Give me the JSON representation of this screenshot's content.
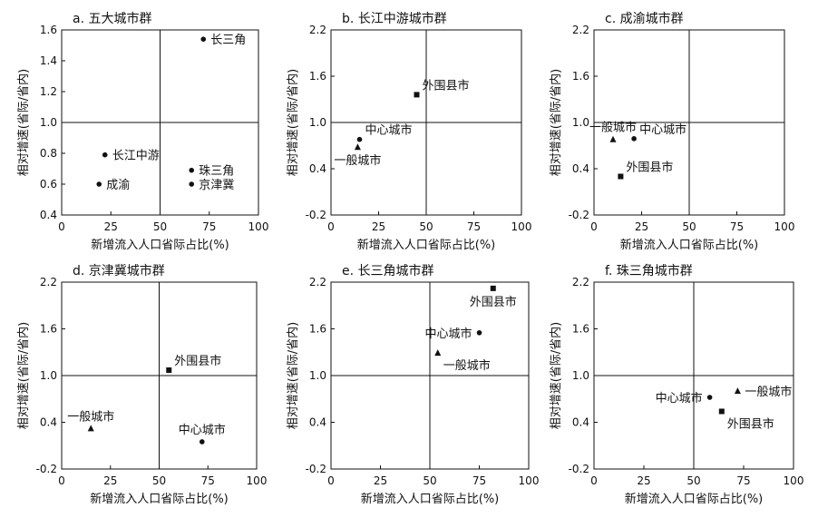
{
  "chart_data": [
    {
      "type": "scatter",
      "title": "a. 五大城市群",
      "xlabel": "新增流入人口省际占比(%)",
      "ylabel": "相对增速(省际/省内)",
      "xlim": [
        0,
        100
      ],
      "ylim": [
        0.4,
        1.6
      ],
      "xticks": [
        "0",
        "25",
        "50",
        "75",
        "100"
      ],
      "yticks": [
        "0.4",
        "0.6",
        "0.8",
        "1.0",
        "1.2",
        "1.4",
        "1.6"
      ],
      "ref_x": 50,
      "ref_y": 1.0,
      "points": [
        {
          "label": "长三角",
          "x": 72,
          "y": 1.54,
          "marker": "circle",
          "label_pos": "right"
        },
        {
          "label": "长江中游",
          "x": 22,
          "y": 0.79,
          "marker": "circle",
          "label_pos": "right"
        },
        {
          "label": "珠三角",
          "x": 66,
          "y": 0.69,
          "marker": "circle",
          "label_pos": "right"
        },
        {
          "label": "成渝",
          "x": 19,
          "y": 0.6,
          "marker": "circle",
          "label_pos": "right"
        },
        {
          "label": "京津冀",
          "x": 66,
          "y": 0.6,
          "marker": "circle",
          "label_pos": "right"
        }
      ]
    },
    {
      "type": "scatter",
      "title": "b. 长江中游城市群",
      "xlabel": "新增流入人口省际占比(%)",
      "ylabel": "相对增速(省际/省内)",
      "xlim": [
        0,
        100
      ],
      "ylim": [
        -0.2,
        2.2
      ],
      "xticks": [
        "0",
        "25",
        "50",
        "75",
        "100"
      ],
      "yticks": [
        "-0.2",
        "0.4",
        "1.0",
        "1.6",
        "2.2"
      ],
      "ref_x": 50,
      "ref_y": 1.0,
      "points": [
        {
          "label": "外围县市",
          "x": 45,
          "y": 1.36,
          "marker": "square",
          "label_pos": "above-right"
        },
        {
          "label": "中心城市",
          "x": 15,
          "y": 0.78,
          "marker": "circle",
          "label_pos": "above-right"
        },
        {
          "label": "一般城市",
          "x": 14,
          "y": 0.68,
          "marker": "triangle",
          "label_pos": "below"
        }
      ]
    },
    {
      "type": "scatter",
      "title": "c. 成渝城市群",
      "xlabel": "新增流入人口省际占比(%)",
      "ylabel": "相对增速(省际/省内)",
      "xlim": [
        0,
        100
      ],
      "ylim": [
        -0.2,
        2.2
      ],
      "xticks": [
        "0",
        "25",
        "50",
        "75",
        "100"
      ],
      "yticks": [
        "-0.2",
        "0.4",
        "1.0",
        "1.6",
        "2.2"
      ],
      "ref_x": 50,
      "ref_y": 1.0,
      "points": [
        {
          "label": "一般城市",
          "x": 10,
          "y": 0.78,
          "marker": "triangle",
          "label_pos": "above"
        },
        {
          "label": "中心城市",
          "x": 21,
          "y": 0.79,
          "marker": "circle",
          "label_pos": "above-right"
        },
        {
          "label": "外围县市",
          "x": 14,
          "y": 0.3,
          "marker": "square",
          "label_pos": "above-right"
        }
      ]
    },
    {
      "type": "scatter",
      "title": "d. 京津冀城市群",
      "xlabel": "新增流入人口省际占比(%)",
      "ylabel": "相对增速(省际/省内)",
      "xlim": [
        0,
        100
      ],
      "ylim": [
        -0.2,
        2.2
      ],
      "xticks": [
        "0",
        "25",
        "50",
        "75",
        "100"
      ],
      "yticks": [
        "-0.2",
        "0.4",
        "1.0",
        "1.6",
        "2.2"
      ],
      "ref_x": 50,
      "ref_y": 1.0,
      "points": [
        {
          "label": "外围县市",
          "x": 55,
          "y": 1.07,
          "marker": "square",
          "label_pos": "above-right"
        },
        {
          "label": "一般城市",
          "x": 15,
          "y": 0.32,
          "marker": "triangle",
          "label_pos": "above"
        },
        {
          "label": "中心城市",
          "x": 72,
          "y": 0.15,
          "marker": "circle",
          "label_pos": "above"
        }
      ]
    },
    {
      "type": "scatter",
      "title": "e. 长三角城市群",
      "xlabel": "新增流入人口省际占比(%)",
      "ylabel": "相对增速(省际/省内)",
      "xlim": [
        0,
        100
      ],
      "ylim": [
        -0.2,
        2.2
      ],
      "xticks": [
        "0",
        "25",
        "50",
        "75",
        "100"
      ],
      "yticks": [
        "-0.2",
        "0.4",
        "1.0",
        "1.6",
        "2.2"
      ],
      "ref_x": 50,
      "ref_y": 1.0,
      "points": [
        {
          "label": "外围县市",
          "x": 82,
          "y": 2.12,
          "marker": "square",
          "label_pos": "below"
        },
        {
          "label": "中心城市",
          "x": 75,
          "y": 1.55,
          "marker": "circle",
          "label_pos": "left"
        },
        {
          "label": "一般城市",
          "x": 54,
          "y": 1.29,
          "marker": "triangle",
          "label_pos": "below-right"
        }
      ]
    },
    {
      "type": "scatter",
      "title": "f. 珠三角城市群",
      "xlabel": "新增流入人口省际占比(%)",
      "ylabel": "相对增速(省际/省内)",
      "xlim": [
        0,
        100
      ],
      "ylim": [
        -0.2,
        2.2
      ],
      "xticks": [
        "0",
        "25",
        "50",
        "75",
        "100"
      ],
      "yticks": [
        "-0.2",
        "0.4",
        "1.0",
        "1.6",
        "2.2"
      ],
      "ref_x": 50,
      "ref_y": 1.0,
      "points": [
        {
          "label": "一般城市",
          "x": 72,
          "y": 0.8,
          "marker": "triangle",
          "label_pos": "right"
        },
        {
          "label": "中心城市",
          "x": 58,
          "y": 0.72,
          "marker": "circle",
          "label_pos": "left"
        },
        {
          "label": "外围县市",
          "x": 64,
          "y": 0.54,
          "marker": "square",
          "label_pos": "below-right"
        }
      ]
    }
  ]
}
